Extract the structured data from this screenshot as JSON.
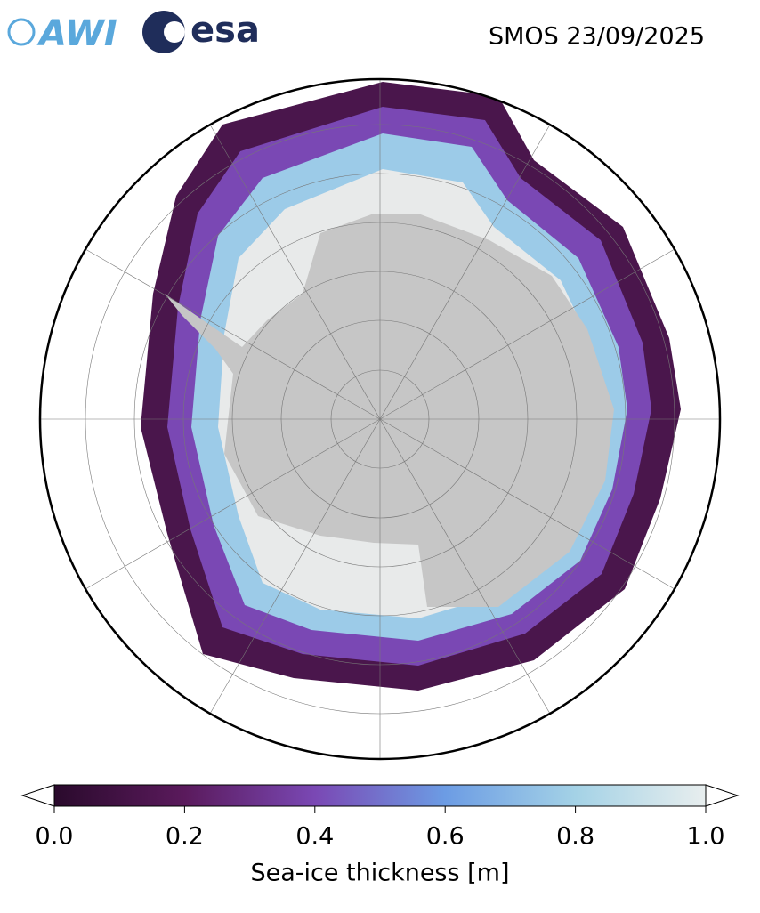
{
  "header": {
    "logos": [
      "AWI",
      "esa"
    ],
    "title": "SMOS 23/09/2025"
  },
  "colorbar": {
    "label": "Sea-ice thickness [m]",
    "lim": [
      0,
      1
    ],
    "ticks": [
      {
        "value": 0,
        "label": "0.0"
      },
      0.2,
      0.4,
      0.6,
      0.8,
      {
        "value": 1,
        "label": "1.0"
      }
    ],
    "colors": [
      "#2a0a2c",
      "#5a1a5c",
      "#7a48b4",
      "#6c9ce4",
      "#a4d2e6",
      "#e8eeee"
    ]
  }
}
